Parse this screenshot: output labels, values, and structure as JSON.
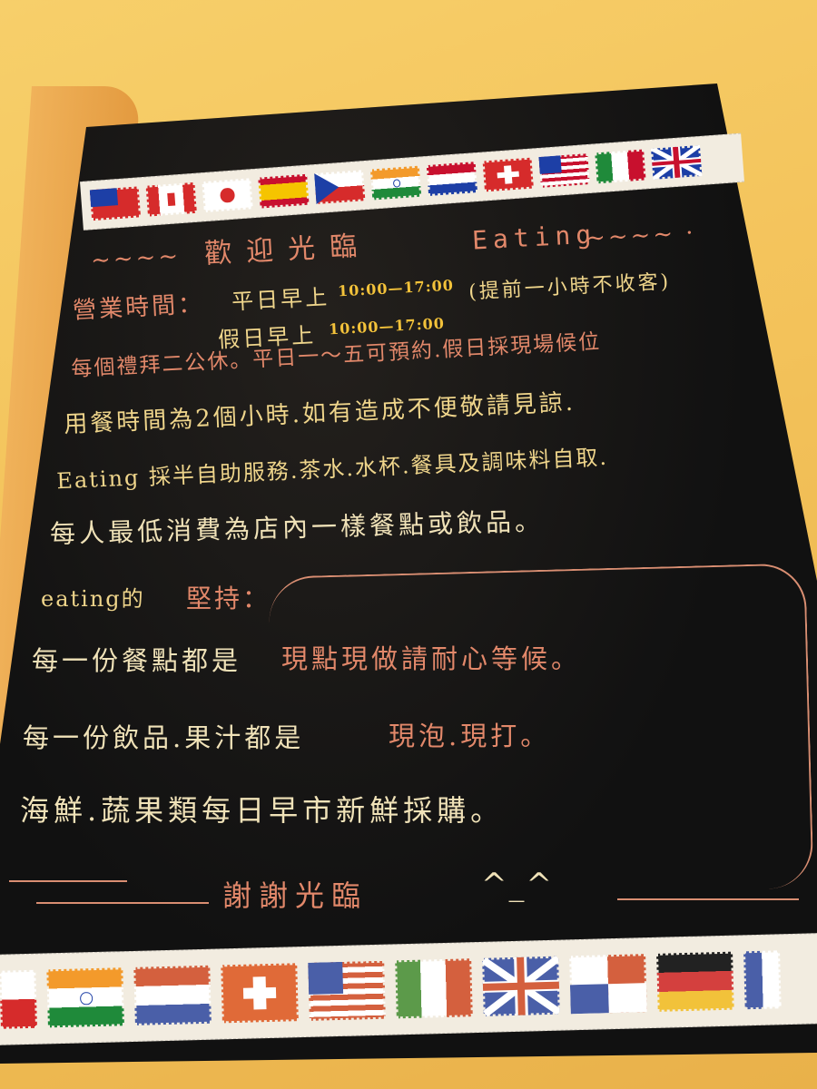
{
  "title": "歡迎光臨",
  "title_en": "Eating",
  "hours": {
    "label": "營業時間：",
    "weekday_label": "平日早上",
    "weekday_range": "10:00—17:00",
    "weekday_note": "(提前一小時不收客)",
    "holiday_label": "假日早上",
    "holiday_range": "10:00—17:00"
  },
  "lines": [
    "每個禮拜二公休。平日一～五可預約.假日採現場候位",
    "用餐時間為2個小時.如有造成不便敬請見諒.",
    "Eating 採半自助服務.茶水.水杯.餐具及調味料自取.",
    "每人最低消費為店內一樣餐點或飲品。"
  ],
  "insist": {
    "prefix": "eating的",
    "heading": "堅持：",
    "lines": [
      {
        "a": "每一份餐點都是",
        "b": "現點現做請耐心等候。"
      },
      {
        "a": "每一份飲品.果汁都是",
        "b": "現泡.現打。"
      },
      {
        "a": "海鮮.蔬果類每日早市新鮮採購。",
        "b": ""
      }
    ]
  },
  "thanks": "謝謝光臨",
  "smiley": "^_^",
  "colors": {
    "board": "#111111",
    "chalk_orange": "#e2886a",
    "chalk_gold": "#efd58b",
    "highlight": "#f3c23a"
  }
}
